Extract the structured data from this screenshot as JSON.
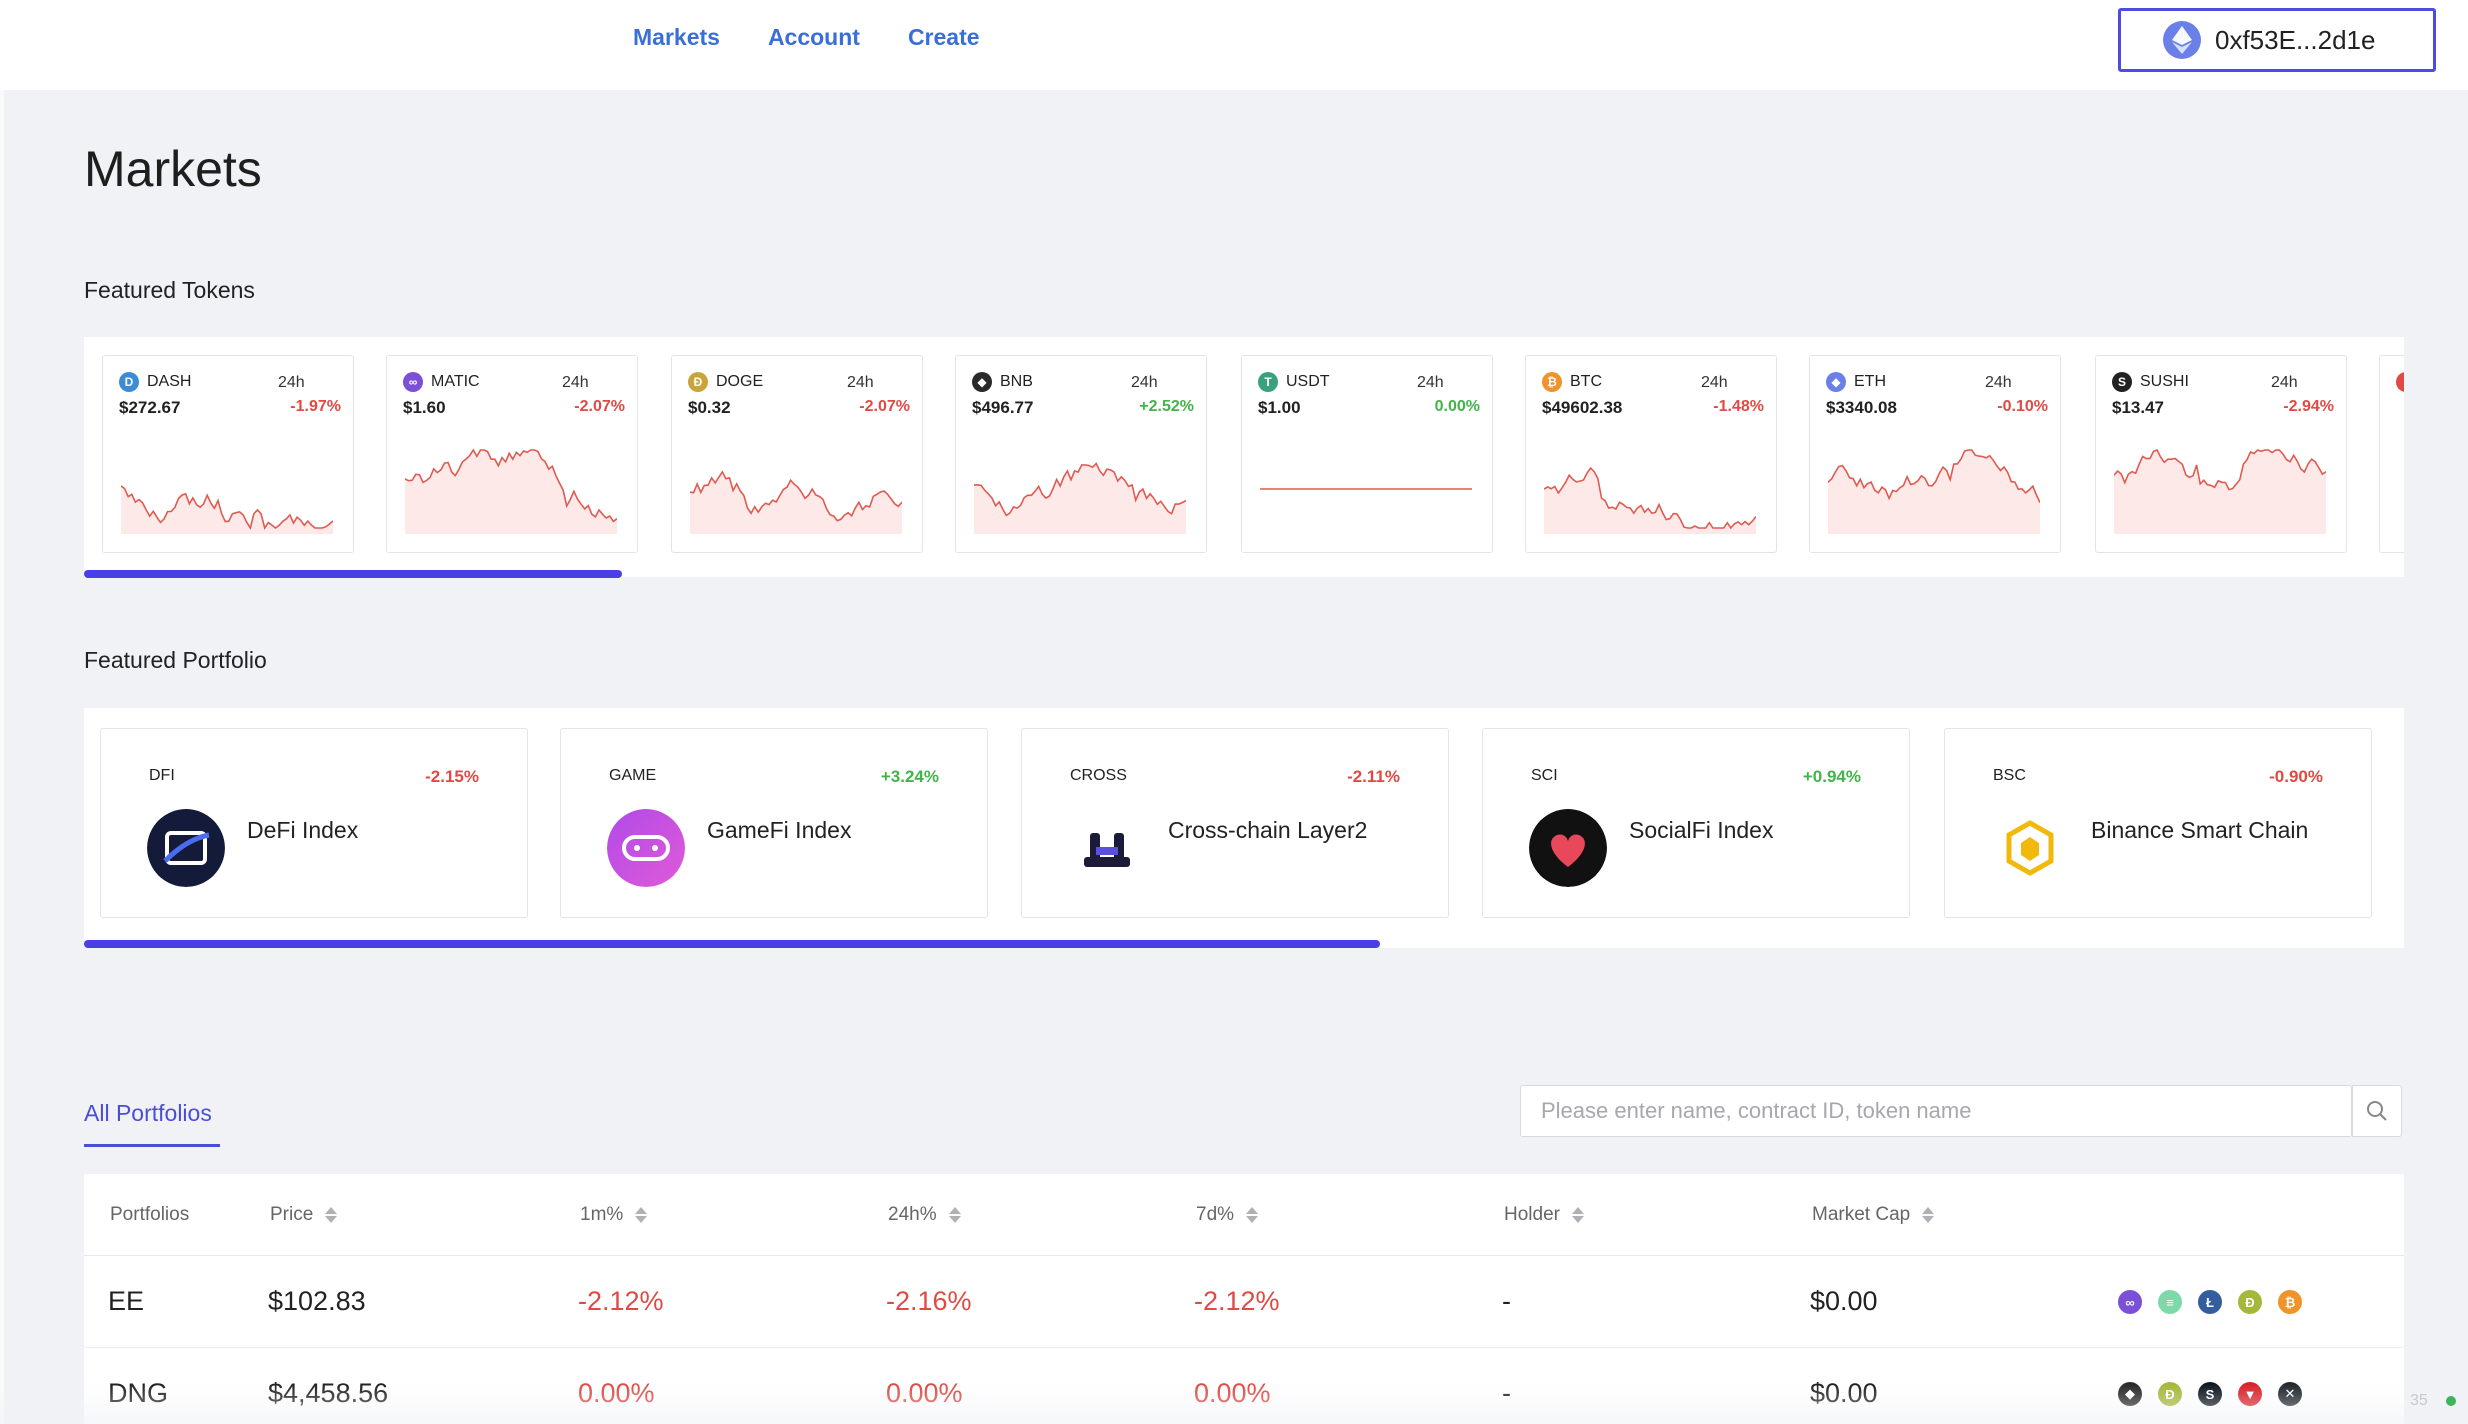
{
  "nav": {
    "items": [
      "Markets",
      "Account",
      "Create"
    ]
  },
  "wallet": {
    "address": "0xf53E...2d1e",
    "icon": "ethereum-icon"
  },
  "page": {
    "title": "Markets"
  },
  "featured_tokens": {
    "title": "Featured Tokens",
    "period_label": "24h",
    "tokens": [
      {
        "symbol": "DASH",
        "price": "$272.67",
        "change": "-1.97%",
        "color": "#3b8bd6",
        "glyph": "D"
      },
      {
        "symbol": "MATIC",
        "price": "$1.60",
        "change": "-2.07%",
        "color": "#7b4fd6",
        "glyph": "∞"
      },
      {
        "symbol": "DOGE",
        "price": "$0.32",
        "change": "-2.07%",
        "color": "#c9a43a",
        "glyph": "Ð"
      },
      {
        "symbol": "BNB",
        "price": "$496.77",
        "change": "+2.52%",
        "color": "#2a2a2a",
        "glyph": "◆"
      },
      {
        "symbol": "USDT",
        "price": "$1.00",
        "change": "0.00%",
        "color": "#3aa17e",
        "glyph": "T"
      },
      {
        "symbol": "BTC",
        "price": "$49602.38",
        "change": "-1.48%",
        "color": "#f0932b",
        "glyph": "₿"
      },
      {
        "symbol": "ETH",
        "price": "$3340.08",
        "change": "-0.10%",
        "color": "#6a7fe8",
        "glyph": "◆"
      },
      {
        "symbol": "SUSHI",
        "price": "$13.47",
        "change": "-2.94%",
        "color": "#222222",
        "glyph": "S"
      }
    ]
  },
  "featured_portfolio": {
    "title": "Featured Portfolio",
    "items": [
      {
        "code": "DFI",
        "change": "-2.15%",
        "name": "DeFi Index",
        "logo": "defi-logo"
      },
      {
        "code": "GAME",
        "change": "+3.24%",
        "name": "GameFi Index",
        "logo": "gamefi-logo"
      },
      {
        "code": "CROSS",
        "change": "-2.11%",
        "name": "Cross-chain Layer2",
        "logo": "cross-chain-logo"
      },
      {
        "code": "SCI",
        "change": "+0.94%",
        "name": "SocialFi Index",
        "logo": "socialfi-logo"
      },
      {
        "code": "BSC",
        "change": "-0.90%",
        "name": "Binance Smart Chain",
        "logo": "bsc-logo"
      }
    ]
  },
  "all_portfolios": {
    "tab_label": "All Portfolios",
    "search_placeholder": "Please enter name, contract ID, token name",
    "columns": [
      "Portfolios",
      "Price",
      "1m%",
      "24h%",
      "7d%",
      "Holder",
      "Market Cap"
    ],
    "rows": [
      {
        "name": "EE",
        "price": "$102.83",
        "m1": "-2.12%",
        "h24": "-2.16%",
        "d7": "-2.12%",
        "holder": "-",
        "market_cap": "$0.00",
        "coins": [
          "matic-icon",
          "usdt-icon",
          "ltc-icon",
          "doge-icon",
          "btc-icon"
        ]
      },
      {
        "name": "DNG",
        "price": "$4,458.56",
        "m1": "0.00%",
        "h24": "0.00%",
        "d7": "0.00%",
        "holder": "-",
        "market_cap": "$0.00",
        "coins": [
          "bnb-icon",
          "doge-icon",
          "sushi-icon",
          "tron-icon",
          "xrp-icon"
        ]
      }
    ]
  },
  "footer": {
    "counter": "35"
  }
}
